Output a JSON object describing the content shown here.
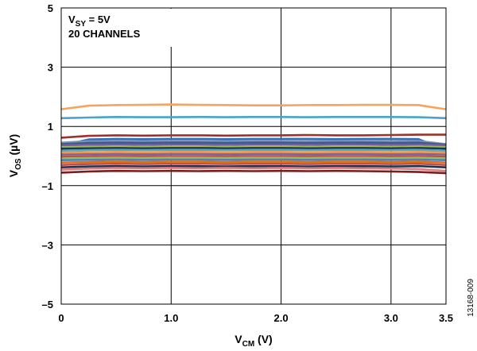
{
  "chart_data": {
    "type": "line",
    "title": "",
    "xlabel": {
      "main": "V",
      "sub": "CM",
      "unit": " (V)"
    },
    "ylabel": {
      "main": "V",
      "sub": "OS",
      "unit": " (µV)"
    },
    "xlim": [
      0,
      3.5
    ],
    "ylim": [
      -5,
      5
    ],
    "xticks": [
      0,
      1.0,
      2.0,
      3.0,
      3.5
    ],
    "xtick_labels": [
      "0",
      "1.0",
      "2.0",
      "3.0",
      "3.5"
    ],
    "yticks": [
      -5,
      -3,
      -1,
      1,
      3,
      5
    ],
    "ytick_labels": [
      "–5",
      "–3",
      "–1",
      "1",
      "3",
      "5"
    ],
    "grid": true,
    "annotations": [
      {
        "main": "V",
        "sub": "SY",
        "rest": " = 5V"
      },
      {
        "text": "20 CHANNELS"
      }
    ],
    "figure_id": "13168-009",
    "x": [
      0,
      0.25,
      0.5,
      0.75,
      1.0,
      1.25,
      1.5,
      1.75,
      2.0,
      2.25,
      2.5,
      2.75,
      3.0,
      3.25,
      3.5
    ],
    "series": [
      {
        "color": "#f4a460",
        "values": [
          1.58,
          1.7,
          1.72,
          1.73,
          1.74,
          1.73,
          1.72,
          1.71,
          1.71,
          1.72,
          1.72,
          1.73,
          1.73,
          1.72,
          1.58
        ]
      },
      {
        "color": "#4aa3c9",
        "values": [
          1.28,
          1.3,
          1.32,
          1.31,
          1.31,
          1.32,
          1.31,
          1.32,
          1.32,
          1.31,
          1.32,
          1.32,
          1.32,
          1.31,
          1.28
        ]
      },
      {
        "color": "#a0302a",
        "values": [
          0.62,
          0.68,
          0.7,
          0.69,
          0.7,
          0.7,
          0.69,
          0.7,
          0.7,
          0.71,
          0.7,
          0.7,
          0.71,
          0.72,
          0.72
        ]
      },
      {
        "color": "#2f6db5",
        "values": [
          0.35,
          0.56,
          0.58,
          0.57,
          0.58,
          0.58,
          0.57,
          0.58,
          0.58,
          0.58,
          0.57,
          0.58,
          0.58,
          0.57,
          0.2
        ]
      },
      {
        "color": "#7f8fb8",
        "values": [
          0.45,
          0.5,
          0.51,
          0.5,
          0.51,
          0.51,
          0.5,
          0.51,
          0.51,
          0.5,
          0.51,
          0.51,
          0.5,
          0.51,
          0.4
        ]
      },
      {
        "color": "#3a5a8c",
        "values": [
          0.4,
          0.44,
          0.45,
          0.44,
          0.45,
          0.45,
          0.44,
          0.45,
          0.45,
          0.44,
          0.45,
          0.45,
          0.44,
          0.45,
          0.38
        ]
      },
      {
        "color": "#7a5c9e",
        "values": [
          0.36,
          0.38,
          0.39,
          0.38,
          0.39,
          0.39,
          0.38,
          0.39,
          0.39,
          0.38,
          0.39,
          0.39,
          0.38,
          0.39,
          0.36
        ]
      },
      {
        "color": "#9bbb59",
        "values": [
          0.3,
          0.31,
          0.32,
          0.31,
          0.32,
          0.32,
          0.31,
          0.32,
          0.32,
          0.31,
          0.32,
          0.32,
          0.31,
          0.32,
          0.3
        ]
      },
      {
        "color": "#1f3552",
        "values": [
          0.25,
          0.26,
          0.27,
          0.26,
          0.27,
          0.27,
          0.26,
          0.27,
          0.27,
          0.26,
          0.27,
          0.27,
          0.26,
          0.27,
          0.25
        ]
      },
      {
        "color": "#4bacc6",
        "values": [
          0.18,
          0.2,
          0.21,
          0.2,
          0.21,
          0.21,
          0.2,
          0.21,
          0.21,
          0.2,
          0.21,
          0.21,
          0.2,
          0.21,
          0.18
        ]
      },
      {
        "color": "#f79646",
        "values": [
          0.12,
          0.13,
          0.14,
          0.13,
          0.14,
          0.14,
          0.13,
          0.14,
          0.14,
          0.13,
          0.14,
          0.14,
          0.13,
          0.14,
          0.12
        ]
      },
      {
        "color": "#8064a2",
        "values": [
          0.05,
          0.06,
          0.07,
          0.06,
          0.07,
          0.07,
          0.06,
          0.07,
          0.07,
          0.06,
          0.07,
          0.07,
          0.06,
          0.07,
          0.05
        ]
      },
      {
        "color": "#c0504d",
        "values": [
          -0.02,
          -0.01,
          0.0,
          -0.01,
          0.0,
          0.0,
          -0.01,
          0.0,
          0.0,
          -0.01,
          0.0,
          0.0,
          -0.01,
          0.0,
          -0.02
        ]
      },
      {
        "color": "#9bbb59",
        "values": [
          -0.08,
          -0.07,
          -0.06,
          -0.07,
          -0.06,
          -0.06,
          -0.07,
          -0.06,
          -0.06,
          -0.07,
          -0.06,
          -0.06,
          -0.07,
          -0.06,
          -0.08
        ]
      },
      {
        "color": "#4f81bd",
        "values": [
          -0.14,
          -0.13,
          -0.12,
          -0.13,
          -0.12,
          -0.12,
          -0.13,
          -0.12,
          -0.12,
          -0.13,
          -0.12,
          -0.12,
          -0.13,
          -0.12,
          -0.14
        ]
      },
      {
        "color": "#e46c0a",
        "values": [
          -0.22,
          -0.2,
          -0.19,
          -0.2,
          -0.19,
          -0.19,
          -0.2,
          -0.19,
          -0.19,
          -0.2,
          -0.19,
          -0.19,
          -0.2,
          -0.19,
          -0.22
        ]
      },
      {
        "color": "#c0504d",
        "values": [
          -0.3,
          -0.27,
          -0.26,
          -0.27,
          -0.26,
          -0.26,
          -0.27,
          -0.26,
          -0.26,
          -0.27,
          -0.26,
          -0.26,
          -0.27,
          -0.26,
          -0.3
        ]
      },
      {
        "color": "#1f3552",
        "values": [
          -0.38,
          -0.35,
          -0.34,
          -0.35,
          -0.34,
          -0.34,
          -0.35,
          -0.34,
          -0.34,
          -0.35,
          -0.34,
          -0.34,
          -0.35,
          -0.34,
          -0.38
        ]
      },
      {
        "color": "#e07b7b",
        "values": [
          -0.46,
          -0.42,
          -0.4,
          -0.41,
          -0.4,
          -0.41,
          -0.4,
          -0.41,
          -0.4,
          -0.41,
          -0.4,
          -0.41,
          -0.42,
          -0.44,
          -0.5
        ]
      },
      {
        "color": "#7a1f1f",
        "values": [
          -0.56,
          -0.52,
          -0.5,
          -0.51,
          -0.5,
          -0.51,
          -0.5,
          -0.51,
          -0.5,
          -0.51,
          -0.5,
          -0.51,
          -0.52,
          -0.54,
          -0.58
        ]
      }
    ]
  }
}
